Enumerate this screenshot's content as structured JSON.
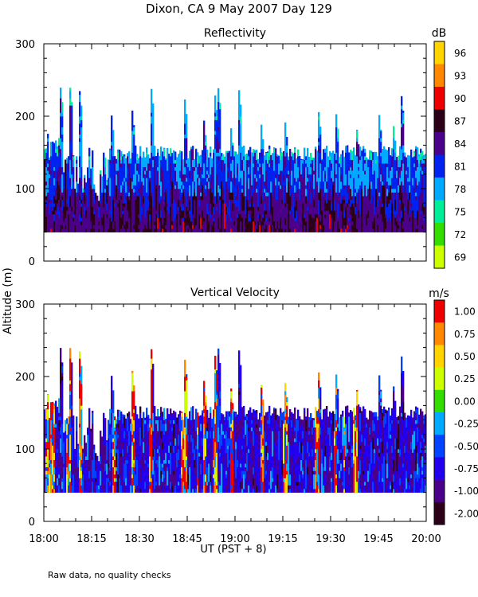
{
  "figure": {
    "title": "Dixon, CA  9 May 2007  Day 129",
    "ylabel": "Altitude (m)",
    "xlabel": "UT  (PST + 8)",
    "footnote": "Raw data, no quality checks"
  },
  "chart_data": [
    {
      "type": "heatmap",
      "title": "Reflectivity",
      "xlabel": "UT  (PST + 8)",
      "ylabel": "Altitude (m)",
      "xlim": [
        "18:00",
        "20:00"
      ],
      "ylim": [
        0,
        300
      ],
      "x_ticks": [
        "18:00",
        "18:15",
        "18:30",
        "18:45",
        "19:00",
        "19:15",
        "19:30",
        "19:45",
        "20:00"
      ],
      "y_ticks": [
        "0",
        "100",
        "200",
        "300"
      ],
      "colorbar": {
        "unit": "dB",
        "labels": [
          "96",
          "93",
          "90",
          "87",
          "84",
          "81",
          "78",
          "75",
          "72",
          "69"
        ],
        "colors": [
          "#ffd400",
          "#ff8800",
          "#ee0000",
          "#2b0018",
          "#4a0088",
          "#0022ee",
          "#00aaff",
          "#00ee99",
          "#33dd00",
          "#ccff00"
        ]
      },
      "data_bottom_m": 40,
      "typical_top_m": 140,
      "max_echo_top_m": 240
    },
    {
      "type": "heatmap",
      "title": "Vertical Velocity",
      "xlabel": "UT  (PST + 8)",
      "ylabel": "Altitude (m)",
      "xlim": [
        "18:00",
        "20:00"
      ],
      "ylim": [
        0,
        300
      ],
      "x_ticks": [
        "18:00",
        "18:15",
        "18:30",
        "18:45",
        "19:00",
        "19:15",
        "19:30",
        "19:45",
        "20:00"
      ],
      "y_ticks": [
        "0",
        "100",
        "200",
        "300"
      ],
      "colorbar": {
        "unit": "m/s",
        "labels": [
          "1.00",
          "0.75",
          "0.50",
          "0.25",
          "0.00",
          "-0.25",
          "-0.50",
          "-0.75",
          "-1.00",
          "-2.00"
        ],
        "colors": [
          "#ee0000",
          "#ff8800",
          "#ffd400",
          "#ccff00",
          "#33dd00",
          "#00aaff",
          "#0044ff",
          "#2200ee",
          "#4a0088",
          "#2b0018"
        ]
      },
      "data_bottom_m": 40,
      "typical_top_m": 140,
      "max_echo_top_m": 240
    }
  ]
}
